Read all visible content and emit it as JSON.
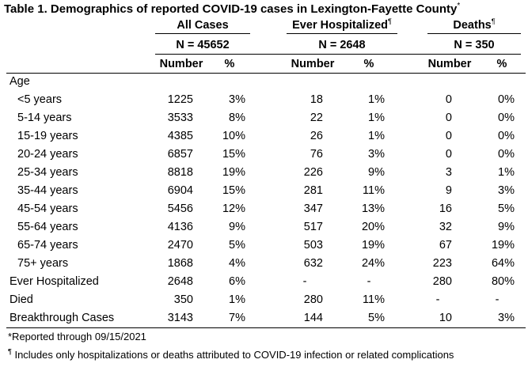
{
  "title": "Table 1. Demographics of reported COVID-19 cases in Lexington-Fayette County",
  "title_marker": "*",
  "groups": [
    {
      "label": "All Cases",
      "marker": "",
      "n": "N = 45652"
    },
    {
      "label": "Ever Hospitalized",
      "marker": "¶",
      "n": "N = 2648"
    },
    {
      "label": "Deaths",
      "marker": "¶",
      "n": "N = 350"
    }
  ],
  "subheaders": {
    "number": "Number",
    "percent": "%"
  },
  "section_label": "Age",
  "rows": [
    {
      "label": "<5 years",
      "indent": true,
      "cells": [
        "1225",
        "3%",
        "18",
        "1%",
        "0",
        "0%"
      ]
    },
    {
      "label": "5-14 years",
      "indent": true,
      "cells": [
        "3533",
        "8%",
        "22",
        "1%",
        "0",
        "0%"
      ]
    },
    {
      "label": "15-19 years",
      "indent": true,
      "cells": [
        "4385",
        "10%",
        "26",
        "1%",
        "0",
        "0%"
      ]
    },
    {
      "label": "20-24 years",
      "indent": true,
      "cells": [
        "6857",
        "15%",
        "76",
        "3%",
        "0",
        "0%"
      ]
    },
    {
      "label": "25-34 years",
      "indent": true,
      "cells": [
        "8818",
        "19%",
        "226",
        "9%",
        "3",
        "1%"
      ]
    },
    {
      "label": "35-44 years",
      "indent": true,
      "cells": [
        "6904",
        "15%",
        "281",
        "11%",
        "9",
        "3%"
      ]
    },
    {
      "label": "45-54 years",
      "indent": true,
      "cells": [
        "5456",
        "12%",
        "347",
        "13%",
        "16",
        "5%"
      ]
    },
    {
      "label": "55-64 years",
      "indent": true,
      "cells": [
        "4136",
        "9%",
        "517",
        "20%",
        "32",
        "9%"
      ]
    },
    {
      "label": "65-74 years",
      "indent": true,
      "cells": [
        "2470",
        "5%",
        "503",
        "19%",
        "67",
        "19%"
      ]
    },
    {
      "label": "75+ years",
      "indent": true,
      "cells": [
        "1868",
        "4%",
        "632",
        "24%",
        "223",
        "64%"
      ]
    },
    {
      "label": "Ever Hospitalized",
      "indent": false,
      "cells": [
        "2648",
        "6%",
        "-",
        "-",
        "280",
        "80%"
      ]
    },
    {
      "label": "Died",
      "indent": false,
      "cells": [
        "350",
        "1%",
        "280",
        "11%",
        "-",
        "-"
      ]
    },
    {
      "label": "Breakthrough Cases",
      "indent": false,
      "cells": [
        "3143",
        "7%",
        "144",
        "5%",
        "10",
        "3%"
      ]
    }
  ],
  "footnotes": [
    {
      "marker": "",
      "text": "*Reported through 09/15/2021"
    },
    {
      "marker": "¶",
      "text": " Includes only hospitalizations or deaths attributed to COVID-19 infection or related complications"
    }
  ]
}
